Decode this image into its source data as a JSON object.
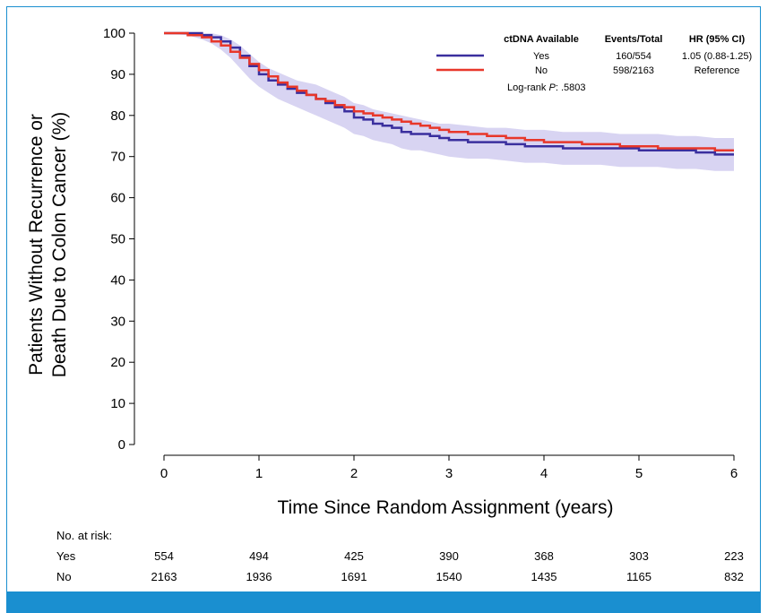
{
  "colors": {
    "yes": "#3a2f9e",
    "no": "#e8372a",
    "band": "#cbc6ee",
    "border": "#1a8fd0"
  },
  "chart_data": {
    "type": "line",
    "subtype": "kaplan-meier",
    "xlabel": "Time Since Random Assignment (years)",
    "ylabel_lines": [
      "Patients Without Recurrence or",
      "Death Due to Colon Cancer (%)"
    ],
    "xlim": [
      0,
      6
    ],
    "ylim": [
      0,
      100
    ],
    "xticks": [
      "0",
      "1",
      "2",
      "3",
      "4",
      "5",
      "6"
    ],
    "yticks": [
      "0",
      "10",
      "20",
      "30",
      "40",
      "50",
      "60",
      "70",
      "80",
      "90",
      "100"
    ],
    "legend": {
      "headers": [
        "ctDNA Available",
        "Events/Total",
        "HR (95% CI)"
      ],
      "rows": [
        {
          "label": "Yes",
          "events": "160/554",
          "hr": "1.05 (0.88-1.25)",
          "color": "#3a2f9e"
        },
        {
          "label": "No",
          "events": "598/2163",
          "hr": "Reference",
          "color": "#e8372a"
        }
      ],
      "logrank_prefix": "Log-rank ",
      "logrank_p": "P",
      "logrank_value": ": .5803"
    },
    "series": [
      {
        "name": "Yes",
        "x": [
          0,
          0.25,
          0.4,
          0.5,
          0.6,
          0.7,
          0.8,
          0.9,
          1.0,
          1.1,
          1.2,
          1.3,
          1.4,
          1.5,
          1.6,
          1.7,
          1.8,
          1.9,
          2.0,
          2.1,
          2.2,
          2.3,
          2.4,
          2.5,
          2.6,
          2.7,
          2.8,
          2.9,
          3.0,
          3.2,
          3.4,
          3.6,
          3.8,
          4.0,
          4.2,
          4.4,
          4.6,
          4.8,
          5.0,
          5.2,
          5.4,
          5.6,
          5.8,
          6.0
        ],
        "y": [
          100,
          100,
          99.5,
          99,
          98,
          96.5,
          94.5,
          92,
          90,
          88.5,
          87.5,
          86.5,
          85.5,
          85,
          84,
          83,
          82,
          81,
          79.5,
          79,
          78,
          77.5,
          77,
          76,
          75.5,
          75.5,
          75,
          74.5,
          74,
          73.5,
          73.5,
          73,
          72.5,
          72.5,
          72,
          72,
          72,
          72,
          71.5,
          71.5,
          71.5,
          71,
          70.5,
          70.5
        ],
        "ci_lower": [
          100,
          99.5,
          98.5,
          97.5,
          96,
          94,
          91.5,
          89,
          87,
          85.5,
          84,
          83,
          82,
          81,
          80,
          79,
          78,
          77,
          75.5,
          75,
          74,
          73.5,
          73,
          72,
          71.5,
          71.5,
          71,
          70.5,
          70,
          69.5,
          69.5,
          69,
          68.5,
          68.5,
          68,
          68,
          68,
          67.5,
          67.5,
          67.5,
          67,
          67,
          66.5,
          66.5
        ],
        "ci_upper": [
          100,
          100,
          100,
          100,
          99.5,
          98.5,
          97,
          95,
          93,
          91.5,
          90.5,
          89.5,
          88.5,
          88,
          87.5,
          86.5,
          85.5,
          84.5,
          83,
          82.5,
          81.5,
          81,
          80.5,
          80,
          79.5,
          79,
          78.5,
          78,
          78,
          77.5,
          77,
          77,
          76.5,
          76.5,
          76,
          76,
          76,
          75.5,
          75.5,
          75.5,
          75,
          75,
          74.5,
          74.5
        ]
      },
      {
        "name": "No",
        "x": [
          0,
          0.25,
          0.4,
          0.5,
          0.6,
          0.7,
          0.8,
          0.9,
          1.0,
          1.1,
          1.2,
          1.3,
          1.4,
          1.5,
          1.6,
          1.7,
          1.8,
          1.9,
          2.0,
          2.1,
          2.2,
          2.3,
          2.4,
          2.5,
          2.6,
          2.7,
          2.8,
          2.9,
          3.0,
          3.2,
          3.4,
          3.6,
          3.8,
          4.0,
          4.2,
          4.4,
          4.6,
          4.8,
          5.0,
          5.2,
          5.4,
          5.6,
          5.8,
          6.0
        ],
        "y": [
          100,
          99.5,
          99,
          98,
          97,
          95.5,
          94,
          92.5,
          91,
          89.5,
          88,
          87,
          86,
          85,
          84,
          83.5,
          82.5,
          82,
          81,
          80.5,
          80,
          79.5,
          79,
          78.5,
          78,
          77.5,
          77,
          76.5,
          76,
          75.5,
          75,
          74.5,
          74,
          73.5,
          73.5,
          73,
          73,
          72.5,
          72.5,
          72,
          72,
          72,
          71.5,
          71.5
        ]
      }
    ],
    "at_risk": {
      "title": "No. at risk:",
      "rows": [
        {
          "label": "Yes",
          "values": [
            "554",
            "494",
            "425",
            "390",
            "368",
            "303",
            "223"
          ]
        },
        {
          "label": "No",
          "values": [
            "2163",
            "1936",
            "1691",
            "1540",
            "1435",
            "1165",
            "832"
          ]
        }
      ]
    }
  }
}
